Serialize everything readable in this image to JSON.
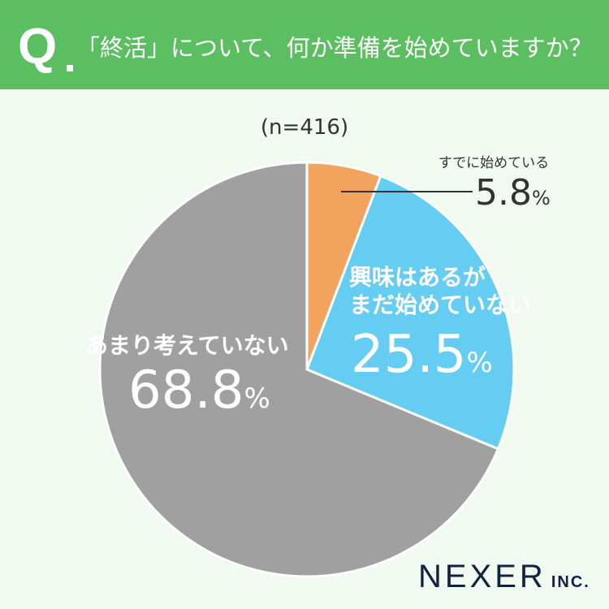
{
  "header": {
    "q": "Q",
    "title": "「終活」について、何か準備を始めていますか？"
  },
  "logo": {
    "name": "NEXER",
    "suffix": "INC."
  },
  "chart_data": {
    "type": "pie",
    "title": "「終活」について、何か準備を始めていますか？",
    "note": "(n=416)",
    "unit": "%",
    "slices": [
      {
        "label": "すでに始めている",
        "value": 5.8,
        "value_text": "5.8",
        "color": "#f2a35e"
      },
      {
        "label": "興味はあるがまだ始めていない",
        "label_lines": [
          "興味はあるが",
          "まだ始めていない"
        ],
        "value": 25.5,
        "value_text": "25.5",
        "color": "#66cdf2"
      },
      {
        "label": "あまり考えていない",
        "value": 68.8,
        "value_text": "68.8",
        "color": "#a0a0a0"
      }
    ]
  }
}
